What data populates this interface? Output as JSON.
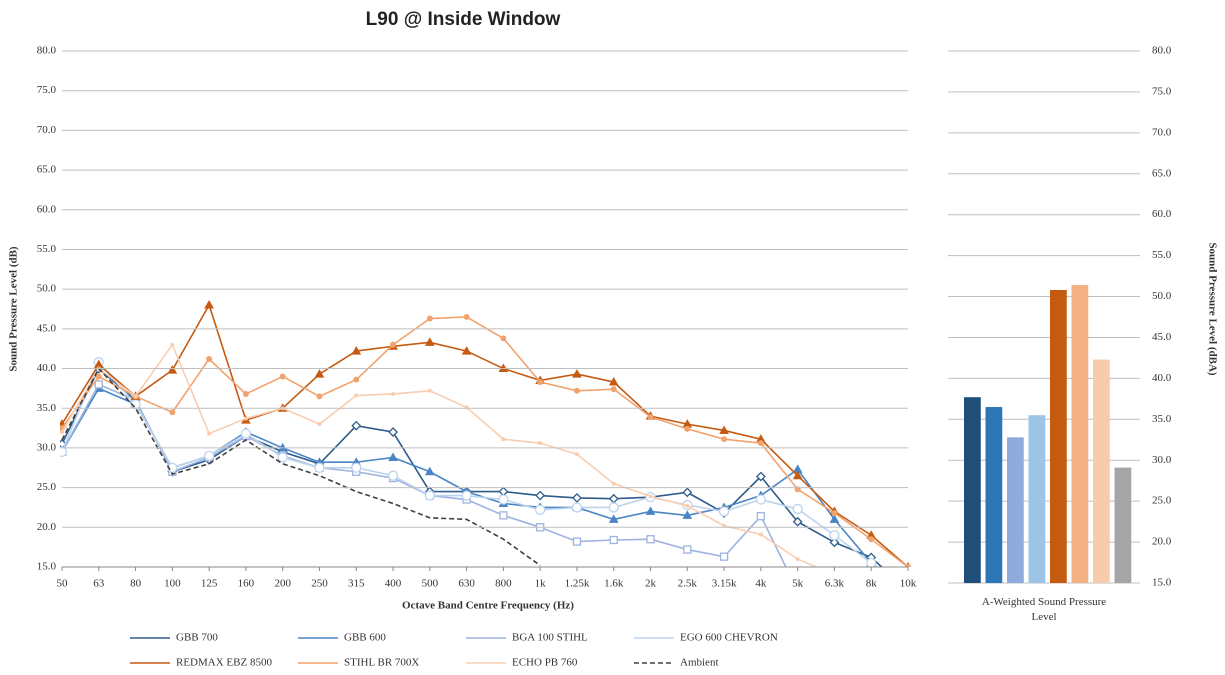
{
  "chart_data": [
    {
      "type": "line",
      "title": "L90 @ Inside Window",
      "x_label": "Octave Band Centre Frequency (Hz)",
      "y_label": "Sound Pressure Level (dB)",
      "categories": [
        "50",
        "63",
        "80",
        "100",
        "125",
        "160",
        "200",
        "250",
        "315",
        "400",
        "500",
        "630",
        "800",
        "1k",
        "1.25k",
        "1.6k",
        "2k",
        "2.5k",
        "3.15k",
        "4k",
        "5k",
        "6.3k",
        "8k",
        "10k"
      ],
      "ylim": [
        15,
        80
      ],
      "yticks": [
        {
          "value": 15,
          "label": "15.0"
        },
        {
          "value": 20,
          "label": "20.0"
        },
        {
          "value": 25,
          "label": "25.0"
        },
        {
          "value": 30,
          "label": "30.0"
        },
        {
          "value": 35,
          "label": "35.0"
        },
        {
          "value": 40,
          "label": "40.0"
        },
        {
          "value": 45,
          "label": "45.0"
        },
        {
          "value": 50,
          "label": "50.0"
        },
        {
          "value": 55,
          "label": "55.0"
        },
        {
          "value": 60,
          "label": "60.0"
        },
        {
          "value": 65,
          "label": "65.0"
        },
        {
          "value": 70,
          "label": "70.0"
        },
        {
          "value": 75,
          "label": "75.0"
        },
        {
          "value": 80,
          "label": "80.0"
        }
      ],
      "grid": true,
      "series": [
        {
          "name": "GBB 700",
          "color": "#2e5c8a",
          "marker": "diamond",
          "values": [
            30.5,
            40,
            36,
            27,
            28.5,
            31.5,
            29.5,
            28,
            32.8,
            32,
            24.5,
            24.5,
            24.5,
            24,
            23.7,
            23.6,
            23.8,
            24.4,
            21.8,
            26.4,
            20.7,
            18.1,
            16.2,
            12
          ]
        },
        {
          "name": "GBB 600",
          "color": "#4a86c5",
          "marker": "triangle",
          "values": [
            29.5,
            37.5,
            35.5,
            27.5,
            29,
            32,
            30,
            28.2,
            28.2,
            28.8,
            27,
            24.5,
            23,
            22.5,
            22.5,
            21,
            22,
            21.5,
            22.5,
            24,
            27.3,
            21,
            15.5,
            12
          ]
        },
        {
          "name": "BGA 100 STIHL",
          "color": "#9db3e0",
          "marker": "square",
          "values": [
            29.5,
            38,
            36,
            27,
            28.8,
            31.5,
            29,
            27.5,
            27,
            26.2,
            24,
            23.5,
            21.5,
            20,
            18.2,
            18.4,
            18.5,
            17.2,
            16.3,
            21.4,
            12,
            null,
            null,
            null
          ]
        },
        {
          "name": "EGO 600 CHEVRON",
          "color": "#bcd3ee",
          "marker": "circle",
          "values": [
            29.5,
            40.8,
            35.5,
            27.5,
            29,
            31.8,
            28.8,
            27.5,
            27.5,
            26.5,
            24,
            24,
            23.5,
            22.2,
            22.5,
            22.5,
            23.8,
            22.8,
            22,
            23.5,
            22.3,
            19,
            15.5,
            12
          ]
        },
        {
          "name": "REDMAX EBZ 8500",
          "color": "#c55a11",
          "marker": "triangle-filled",
          "values": [
            33,
            40.5,
            36.5,
            39.8,
            48,
            33.5,
            35,
            39.3,
            42.2,
            42.8,
            43.3,
            42.2,
            40,
            38.5,
            39.3,
            38.3,
            34,
            33,
            32.2,
            31.1,
            26.5,
            22,
            19,
            15
          ]
        },
        {
          "name": "STIHL BR 700X",
          "color": "#f1a36e",
          "marker": "dot",
          "values": [
            32.5,
            39,
            36.5,
            34.5,
            41.2,
            36.8,
            39,
            36.5,
            38.6,
            43,
            46.3,
            46.5,
            43.8,
            38.3,
            37.2,
            37.4,
            33.9,
            32.4,
            31.1,
            30.6,
            24.8,
            21.8,
            18.5,
            15
          ]
        },
        {
          "name": "ECHO PB 760",
          "color": "#f9cdb0",
          "marker": "small-dot",
          "values": [
            32,
            40,
            36.5,
            43,
            31.8,
            33.7,
            35,
            33,
            36.6,
            36.8,
            37.2,
            35.1,
            31.1,
            30.6,
            29.2,
            25.5,
            23.9,
            22.7,
            20.2,
            19.1,
            16,
            14,
            null,
            null
          ]
        },
        {
          "name": "Ambient",
          "color": "#404040",
          "marker": "none",
          "dashed": true,
          "values": [
            31,
            40,
            35,
            26.7,
            28,
            31,
            28,
            26.5,
            24.5,
            23,
            21.2,
            21,
            18.5,
            15.2,
            null,
            null,
            null,
            null,
            null,
            null,
            null,
            null,
            null,
            null
          ]
        }
      ]
    },
    {
      "type": "bar",
      "x_label": "A-Weighted Sound Pressure Level",
      "y_label": "Sound Pressure Level (dBA)",
      "values": [
        37.7,
        36.5,
        32.8,
        35.5,
        50.8,
        51.4,
        42.3,
        29.1
      ],
      "colors": [
        "#1f4e79",
        "#2e75b6",
        "#8faadc",
        "#9dc3e6",
        "#c55a11",
        "#f4b183",
        "#f8cbad",
        "#a5a5a5"
      ],
      "ylim": [
        15,
        80
      ],
      "yticks": [
        {
          "value": 15,
          "label": "15.0"
        },
        {
          "value": 20,
          "label": "20.0"
        },
        {
          "value": 25,
          "label": "25.0"
        },
        {
          "value": 30,
          "label": "30.0"
        },
        {
          "value": 35,
          "label": "35.0"
        },
        {
          "value": 40,
          "label": "40.0"
        },
        {
          "value": 45,
          "label": "45.0"
        },
        {
          "value": 50,
          "label": "50.0"
        },
        {
          "value": 55,
          "label": "55.0"
        },
        {
          "value": 60,
          "label": "60.0"
        },
        {
          "value": 65,
          "label": "65.0"
        },
        {
          "value": 70,
          "label": "70.0"
        },
        {
          "value": 75,
          "label": "75.0"
        },
        {
          "value": 80,
          "label": "80.0"
        }
      ],
      "grid": true
    }
  ]
}
